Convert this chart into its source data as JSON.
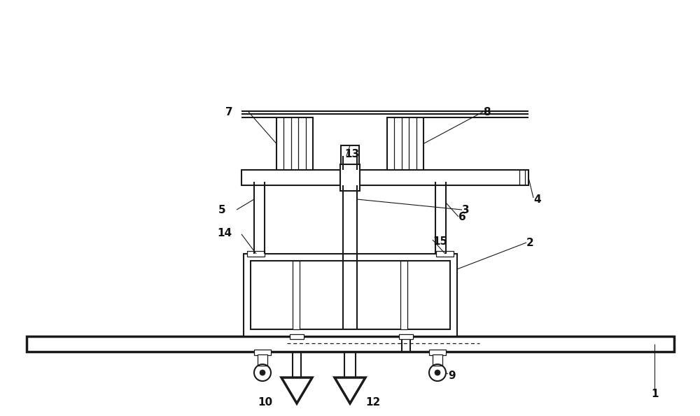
{
  "bg_color": "#ffffff",
  "line_color": "#1a1a1a",
  "lw": 1.5,
  "lw_thick": 2.5,
  "lw_thin": 0.9,
  "fig_width": 10.0,
  "fig_height": 5.95
}
